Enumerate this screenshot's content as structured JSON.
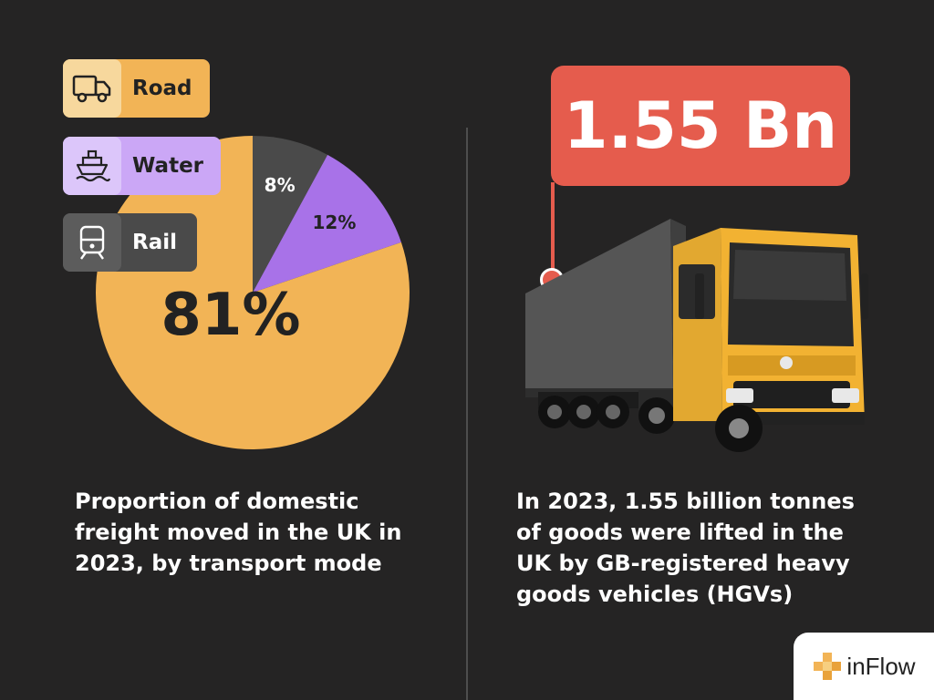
{
  "chart_data": {
    "type": "pie",
    "categories": [
      "Road",
      "Water",
      "Rail"
    ],
    "values": [
      81,
      12,
      8
    ],
    "value_labels": [
      "81%",
      "12%",
      "8%"
    ],
    "colors": [
      "#f2b456",
      "#a872e8",
      "#4a4a4a"
    ]
  },
  "legend": {
    "items": [
      {
        "label": "Road",
        "icon": "truck-icon"
      },
      {
        "label": "Water",
        "icon": "ship-icon"
      },
      {
        "label": "Rail",
        "icon": "train-icon"
      }
    ]
  },
  "left": {
    "caption": "Proportion of domestic freight moved in the UK in 2023, by transport mode"
  },
  "right": {
    "headline": "1.55 Bn",
    "caption": "In 2023, 1.55 billion tonnes of goods were lifted in the UK by GB-registered heavy goods vehicles (HGVs)"
  },
  "logo": {
    "text": "inFlow"
  }
}
